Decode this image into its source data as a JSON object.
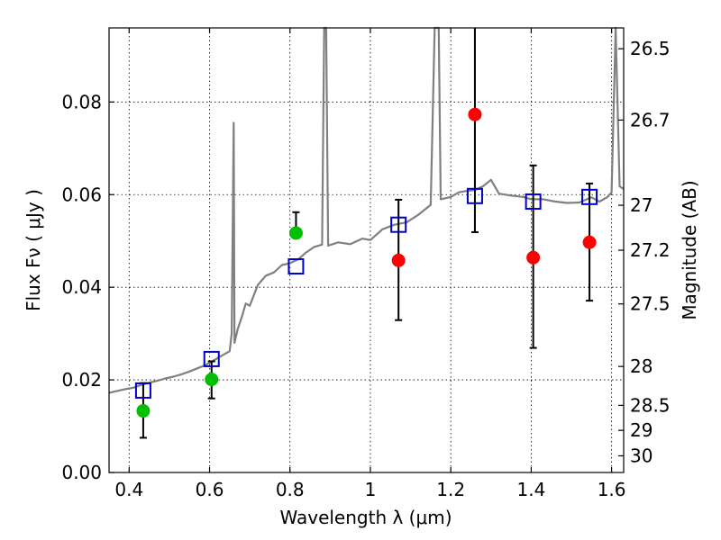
{
  "chart_data": {
    "type": "scatter",
    "xlabel": "Wavelength  λ (μm)",
    "ylabel": "Flux  Fν  ( μJy )",
    "ylabel_right": "Magnitude (AB)",
    "xlim": [
      0.35,
      1.63
    ],
    "ylim": [
      0,
      0.096
    ],
    "x_ticks": [
      0.4,
      0.6,
      0.8,
      1.0,
      1.2,
      1.4,
      1.6
    ],
    "x_tick_labels": [
      "0.4",
      "0.6",
      "0.8",
      "1",
      "1.2",
      "1.4",
      "1.6"
    ],
    "y_ticks": [
      0.0,
      0.02,
      0.04,
      0.06,
      0.08
    ],
    "y_tick_labels": [
      "0.00",
      "0.02",
      "0.04",
      "0.06",
      "0.08"
    ],
    "right_ticks": [
      {
        "label": "26.5",
        "flux": 0.0915
      },
      {
        "label": "26.7",
        "flux": 0.0761
      },
      {
        "label": "27",
        "flux": 0.0577
      },
      {
        "label": "27.2",
        "flux": 0.048
      },
      {
        "label": "27.5",
        "flux": 0.0364
      },
      {
        "label": "28",
        "flux": 0.0229
      },
      {
        "label": "28.5",
        "flux": 0.0145
      },
      {
        "label": "29",
        "flux": 0.0091
      },
      {
        "label": "30",
        "flux": 0.0036
      }
    ],
    "grid": true,
    "colors": {
      "spectrum": "#808080",
      "green": "#00bf00",
      "red": "#ff0000",
      "model_box": "#0000cc",
      "errorbar": "#000000"
    },
    "spectrum": [
      [
        0.35,
        0.0172
      ],
      [
        0.37,
        0.0176
      ],
      [
        0.39,
        0.018
      ],
      [
        0.41,
        0.0183
      ],
      [
        0.43,
        0.0189
      ],
      [
        0.45,
        0.0194
      ],
      [
        0.47,
        0.0198
      ],
      [
        0.49,
        0.0203
      ],
      [
        0.51,
        0.0207
      ],
      [
        0.53,
        0.0212
      ],
      [
        0.55,
        0.0218
      ],
      [
        0.57,
        0.0225
      ],
      [
        0.59,
        0.0232
      ],
      [
        0.61,
        0.0242
      ],
      [
        0.63,
        0.0252
      ],
      [
        0.65,
        0.0262
      ],
      [
        0.655,
        0.03
      ],
      [
        0.66,
        0.0755
      ],
      [
        0.662,
        0.028
      ],
      [
        0.67,
        0.031
      ],
      [
        0.68,
        0.0335
      ],
      [
        0.69,
        0.0365
      ],
      [
        0.7,
        0.036
      ],
      [
        0.72,
        0.0405
      ],
      [
        0.74,
        0.0425
      ],
      [
        0.76,
        0.0432
      ],
      [
        0.78,
        0.0448
      ],
      [
        0.8,
        0.0452
      ],
      [
        0.82,
        0.046
      ],
      [
        0.84,
        0.0475
      ],
      [
        0.86,
        0.0487
      ],
      [
        0.88,
        0.0492
      ],
      [
        0.885,
        0.096
      ],
      [
        0.89,
        0.096
      ],
      [
        0.895,
        0.049
      ],
      [
        0.92,
        0.0497
      ],
      [
        0.95,
        0.0493
      ],
      [
        0.98,
        0.0505
      ],
      [
        1.0,
        0.0502
      ],
      [
        1.03,
        0.0525
      ],
      [
        1.06,
        0.0535
      ],
      [
        1.09,
        0.054
      ],
      [
        1.12,
        0.0557
      ],
      [
        1.15,
        0.0578
      ],
      [
        1.16,
        0.096
      ],
      [
        1.17,
        0.096
      ],
      [
        1.175,
        0.059
      ],
      [
        1.2,
        0.0595
      ],
      [
        1.22,
        0.0605
      ],
      [
        1.24,
        0.0608
      ],
      [
        1.26,
        0.061
      ],
      [
        1.28,
        0.0618
      ],
      [
        1.3,
        0.0632
      ],
      [
        1.32,
        0.0602
      ],
      [
        1.35,
        0.0598
      ],
      [
        1.38,
        0.0595
      ],
      [
        1.4,
        0.059
      ],
      [
        1.43,
        0.059
      ],
      [
        1.46,
        0.0585
      ],
      [
        1.49,
        0.0582
      ],
      [
        1.52,
        0.0583
      ],
      [
        1.55,
        0.0594
      ],
      [
        1.57,
        0.0585
      ],
      [
        1.59,
        0.0595
      ],
      [
        1.6,
        0.0605
      ],
      [
        1.61,
        0.096
      ],
      [
        1.62,
        0.0618
      ],
      [
        1.63,
        0.0612
      ]
    ],
    "model_points": [
      {
        "x": 0.435,
        "y": 0.0177
      },
      {
        "x": 0.605,
        "y": 0.0245
      },
      {
        "x": 0.815,
        "y": 0.0445
      },
      {
        "x": 1.07,
        "y": 0.0535
      },
      {
        "x": 1.26,
        "y": 0.0597
      },
      {
        "x": 1.405,
        "y": 0.0585
      },
      {
        "x": 1.545,
        "y": 0.0595
      }
    ],
    "observed_points": [
      {
        "x": 0.435,
        "y": 0.0133,
        "err_low": 0.0075,
        "err_high": 0.0193,
        "color": "green"
      },
      {
        "x": 0.605,
        "y": 0.0201,
        "err_low": 0.016,
        "err_high": 0.024,
        "color": "green"
      },
      {
        "x": 0.815,
        "y": 0.0517,
        "err_low": null,
        "err_high": 0.0562,
        "color": "green"
      },
      {
        "x": 1.07,
        "y": 0.0458,
        "err_low": 0.0329,
        "err_high": 0.0589,
        "color": "red"
      },
      {
        "x": 1.26,
        "y": 0.0773,
        "err_low": 0.0519,
        "err_high": 0.098,
        "color": "red"
      },
      {
        "x": 1.405,
        "y": 0.0464,
        "err_low": 0.0269,
        "err_high": 0.0663,
        "color": "red"
      },
      {
        "x": 1.545,
        "y": 0.0497,
        "err_low": 0.0371,
        "err_high": 0.0624,
        "color": "red"
      }
    ]
  }
}
